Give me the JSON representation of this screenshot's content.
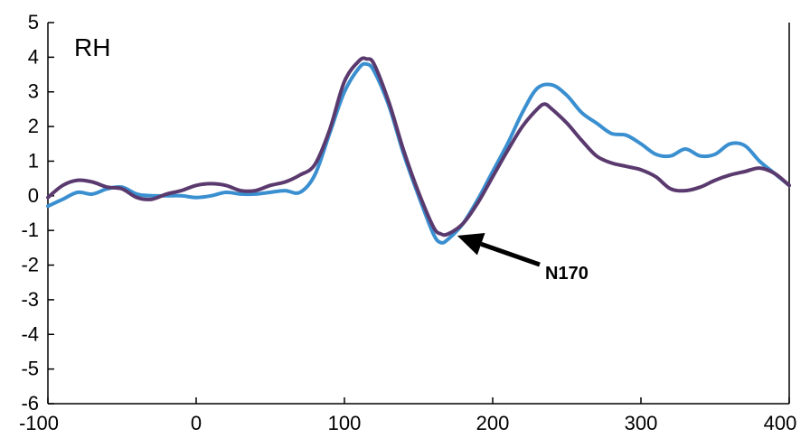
{
  "chart_data": {
    "type": "line",
    "panel_label": "RH",
    "xlim": [
      -100,
      400
    ],
    "ylim": [
      -6,
      5
    ],
    "xticks": [
      -100,
      0,
      100,
      200,
      300,
      400
    ],
    "yticks": [
      5,
      4,
      3,
      2,
      1,
      0,
      -1,
      -2,
      -3,
      -4,
      -5,
      -6
    ],
    "grid": false,
    "series": [
      {
        "color": "#3a8fd0",
        "points": [
          [
            -100,
            -0.3
          ],
          [
            -90,
            -0.1
          ],
          [
            -80,
            0.1
          ],
          [
            -70,
            0.05
          ],
          [
            -60,
            0.2
          ],
          [
            -50,
            0.25
          ],
          [
            -40,
            0.05
          ],
          [
            -30,
            0.0
          ],
          [
            -20,
            0.0
          ],
          [
            -10,
            0.0
          ],
          [
            0,
            -0.05
          ],
          [
            10,
            0.0
          ],
          [
            20,
            0.1
          ],
          [
            30,
            0.05
          ],
          [
            40,
            0.05
          ],
          [
            50,
            0.1
          ],
          [
            60,
            0.15
          ],
          [
            70,
            0.1
          ],
          [
            80,
            0.6
          ],
          [
            90,
            1.8
          ],
          [
            100,
            3.0
          ],
          [
            110,
            3.7
          ],
          [
            115,
            3.8
          ],
          [
            120,
            3.6
          ],
          [
            130,
            2.6
          ],
          [
            140,
            1.2
          ],
          [
            150,
            0.0
          ],
          [
            160,
            -1.1
          ],
          [
            165,
            -1.35
          ],
          [
            170,
            -1.25
          ],
          [
            180,
            -0.8
          ],
          [
            190,
            -0.1
          ],
          [
            200,
            0.7
          ],
          [
            210,
            1.5
          ],
          [
            220,
            2.4
          ],
          [
            230,
            3.1
          ],
          [
            240,
            3.2
          ],
          [
            250,
            2.9
          ],
          [
            260,
            2.4
          ],
          [
            270,
            2.1
          ],
          [
            280,
            1.8
          ],
          [
            290,
            1.75
          ],
          [
            300,
            1.5
          ],
          [
            310,
            1.2
          ],
          [
            320,
            1.15
          ],
          [
            330,
            1.35
          ],
          [
            340,
            1.15
          ],
          [
            350,
            1.2
          ],
          [
            360,
            1.5
          ],
          [
            370,
            1.45
          ],
          [
            380,
            1.0
          ],
          [
            390,
            0.65
          ],
          [
            400,
            0.3
          ]
        ]
      },
      {
        "color": "#5a3a6e",
        "points": [
          [
            -100,
            -0.05
          ],
          [
            -90,
            0.3
          ],
          [
            -80,
            0.45
          ],
          [
            -70,
            0.4
          ],
          [
            -60,
            0.25
          ],
          [
            -50,
            0.2
          ],
          [
            -40,
            -0.05
          ],
          [
            -30,
            -0.1
          ],
          [
            -20,
            0.05
          ],
          [
            -10,
            0.15
          ],
          [
            0,
            0.3
          ],
          [
            10,
            0.35
          ],
          [
            20,
            0.3
          ],
          [
            30,
            0.15
          ],
          [
            40,
            0.15
          ],
          [
            50,
            0.3
          ],
          [
            60,
            0.4
          ],
          [
            70,
            0.6
          ],
          [
            80,
            0.9
          ],
          [
            90,
            1.9
          ],
          [
            100,
            3.3
          ],
          [
            110,
            3.9
          ],
          [
            115,
            3.95
          ],
          [
            120,
            3.8
          ],
          [
            130,
            2.7
          ],
          [
            140,
            1.3
          ],
          [
            150,
            0.1
          ],
          [
            160,
            -0.9
          ],
          [
            165,
            -1.1
          ],
          [
            170,
            -1.1
          ],
          [
            180,
            -0.8
          ],
          [
            190,
            -0.2
          ],
          [
            200,
            0.55
          ],
          [
            210,
            1.3
          ],
          [
            220,
            2.0
          ],
          [
            230,
            2.5
          ],
          [
            235,
            2.65
          ],
          [
            240,
            2.5
          ],
          [
            250,
            2.1
          ],
          [
            260,
            1.6
          ],
          [
            270,
            1.15
          ],
          [
            280,
            0.95
          ],
          [
            290,
            0.85
          ],
          [
            300,
            0.75
          ],
          [
            310,
            0.55
          ],
          [
            320,
            0.2
          ],
          [
            330,
            0.15
          ],
          [
            340,
            0.25
          ],
          [
            350,
            0.45
          ],
          [
            360,
            0.6
          ],
          [
            370,
            0.7
          ],
          [
            380,
            0.8
          ],
          [
            390,
            0.65
          ],
          [
            400,
            0.3
          ]
        ]
      }
    ],
    "annotation": {
      "text": "N170",
      "points_to": [
        170,
        -1.1
      ]
    }
  }
}
